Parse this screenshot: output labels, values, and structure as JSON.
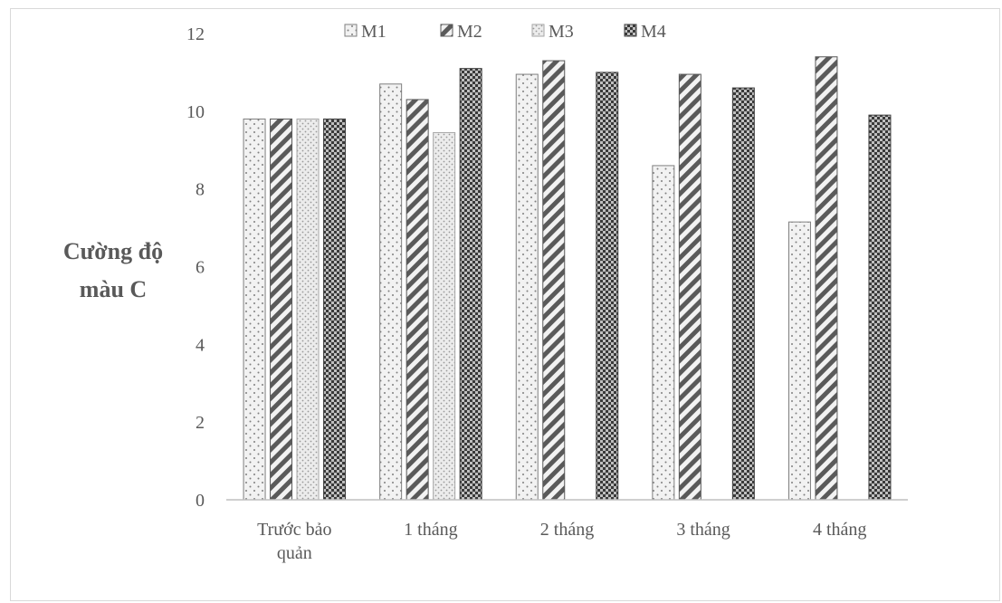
{
  "chart_data": {
    "type": "bar",
    "title": "",
    "xlabel": "",
    "ylabel": [
      "Cường độ",
      "màu C"
    ],
    "ylim": [
      0,
      12
    ],
    "yticks": [
      0,
      2,
      4,
      6,
      8,
      10,
      12
    ],
    "grid": false,
    "legend_position": "top",
    "categories": [
      [
        "Trước bảo",
        "quản"
      ],
      [
        "1 tháng"
      ],
      [
        "2 tháng"
      ],
      [
        "3 tháng"
      ],
      [
        "4 tháng"
      ]
    ],
    "series": [
      {
        "name": "M1",
        "values": [
          9.8,
          10.7,
          10.95,
          8.6,
          7.15
        ],
        "pattern": "dots",
        "color": "#7f7f7f"
      },
      {
        "name": "M2",
        "values": [
          9.8,
          10.3,
          11.3,
          10.95,
          11.4
        ],
        "pattern": "diagonal",
        "color": "#595959"
      },
      {
        "name": "M3",
        "values": [
          9.8,
          9.45,
          null,
          null,
          null
        ],
        "pattern": "fine-dots",
        "color": "#a6a6a6"
      },
      {
        "name": "M4",
        "values": [
          9.8,
          11.1,
          11.0,
          10.6,
          9.9
        ],
        "pattern": "checker",
        "color": "#404040"
      }
    ]
  }
}
